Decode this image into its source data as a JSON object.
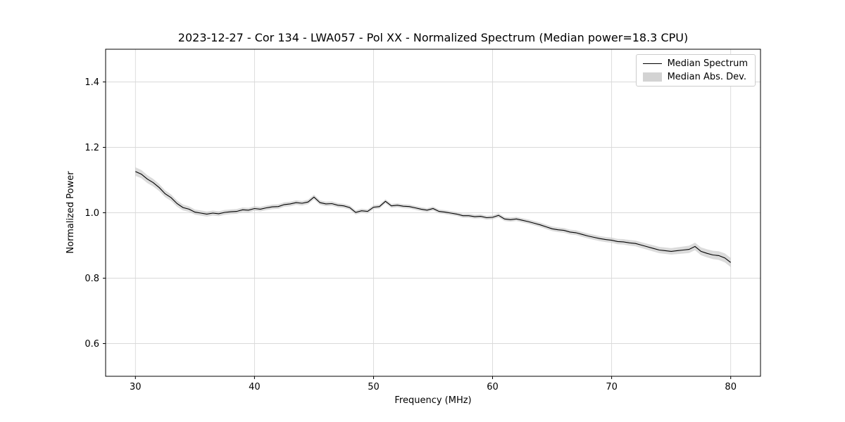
{
  "figure": {
    "title": "2023-12-27 - Cor 134 - LWA057 - Pol XX - Normalized Spectrum (Median power=18.3 CPU)"
  },
  "legend": {
    "items": [
      {
        "label": "Median Spectrum",
        "type": "line",
        "color": "#000000"
      },
      {
        "label": "Median Abs. Dev.",
        "type": "patch",
        "color": "#d3d3d3"
      }
    ],
    "position": "upper right"
  },
  "chart_data": {
    "type": "line",
    "title": "2023-12-27 - Cor 134 - LWA057 - Pol XX - Normalized Spectrum (Median power=18.3 CPU)",
    "xlabel": "Frequency (MHz)",
    "ylabel": "Normalized Power",
    "xlim": [
      27.5,
      82.5
    ],
    "ylim": [
      0.5,
      1.5
    ],
    "xticks": [
      30,
      40,
      50,
      60,
      70,
      80
    ],
    "yticks": [
      0.6,
      0.8,
      1.0,
      1.2,
      1.4
    ],
    "grid": true,
    "grid_color": "#d9d9d9",
    "line_color": "#000000",
    "band_color": "#c8c8c8",
    "band_opacity": 0.65,
    "legend_position": "upper right",
    "x_start": 30.0,
    "x_step": 0.5,
    "series": [
      {
        "name": "Median Spectrum",
        "color": "#000000",
        "values": [
          1.126,
          1.118,
          1.103,
          1.092,
          1.077,
          1.058,
          1.046,
          1.028,
          1.016,
          1.011,
          1.002,
          0.999,
          0.996,
          0.999,
          0.997,
          1.001,
          1.003,
          1.004,
          1.009,
          1.008,
          1.013,
          1.011,
          1.015,
          1.018,
          1.019,
          1.025,
          1.027,
          1.031,
          1.029,
          1.033,
          1.048,
          1.031,
          1.027,
          1.028,
          1.023,
          1.021,
          1.016,
          1.001,
          1.006,
          1.004,
          1.017,
          1.019,
          1.035,
          1.021,
          1.023,
          1.02,
          1.019,
          1.015,
          1.011,
          1.008,
          1.013,
          1.004,
          1.002,
          0.999,
          0.996,
          0.991,
          0.991,
          0.988,
          0.989,
          0.985,
          0.986,
          0.992,
          0.981,
          0.979,
          0.981,
          0.977,
          0.973,
          0.968,
          0.963,
          0.957,
          0.951,
          0.948,
          0.946,
          0.941,
          0.939,
          0.934,
          0.929,
          0.925,
          0.921,
          0.918,
          0.916,
          0.912,
          0.911,
          0.908,
          0.906,
          0.901,
          0.896,
          0.891,
          0.886,
          0.884,
          0.882,
          0.884,
          0.886,
          0.888,
          0.897,
          0.882,
          0.876,
          0.871,
          0.869,
          0.862,
          0.848
        ]
      },
      {
        "name": "Median Abs. Dev.",
        "type": "band",
        "color": "#c8c8c8",
        "halfwidth_anchors": {
          "x": [
            30,
            35,
            40,
            45,
            50,
            55,
            60,
            65,
            70,
            75,
            80
          ],
          "hw": [
            0.013,
            0.008,
            0.007,
            0.007,
            0.006,
            0.006,
            0.006,
            0.007,
            0.008,
            0.01,
            0.014
          ]
        }
      }
    ]
  }
}
